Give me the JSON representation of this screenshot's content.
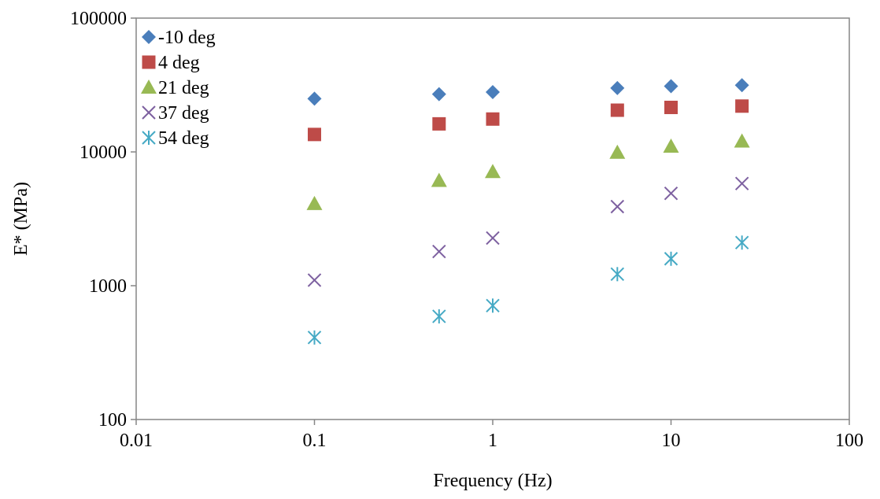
{
  "chart_data": {
    "type": "scatter",
    "title": "",
    "xlabel": "Frequency (Hz)",
    "ylabel": "E* (MPa)",
    "x_scale": "log",
    "y_scale": "log",
    "xlim": [
      0.01,
      100
    ],
    "ylim": [
      100,
      100000
    ],
    "x_ticks": [
      0.01,
      0.1,
      1,
      10,
      100
    ],
    "x_tick_labels": [
      "0.01",
      "0.1",
      "1",
      "10",
      "100"
    ],
    "y_ticks": [
      100,
      1000,
      10000,
      100000
    ],
    "y_tick_labels": [
      "100",
      "1000",
      "10000",
      "100000"
    ],
    "grid": false,
    "legend_position": "top-left",
    "series": [
      {
        "name": "-10 deg",
        "marker": "diamond",
        "color": "#4a7ebb",
        "x": [
          0.1,
          0.5,
          1,
          5,
          10,
          25
        ],
        "y": [
          25000,
          27000,
          28000,
          30000,
          31000,
          31500
        ]
      },
      {
        "name": "4 deg",
        "marker": "square",
        "color": "#be4b48",
        "x": [
          0.1,
          0.5,
          1,
          5,
          10,
          25
        ],
        "y": [
          13500,
          16200,
          17600,
          20500,
          21500,
          22000
        ]
      },
      {
        "name": "21 deg",
        "marker": "triangle",
        "color": "#98b954",
        "x": [
          0.1,
          0.5,
          1,
          5,
          10,
          25
        ],
        "y": [
          4100,
          6100,
          7100,
          9900,
          11000,
          12000
        ]
      },
      {
        "name": "37 deg",
        "marker": "x",
        "color": "#7d60a0",
        "x": [
          0.1,
          0.5,
          1,
          5,
          10,
          25
        ],
        "y": [
          1100,
          1800,
          2270,
          3900,
          4900,
          5800
        ]
      },
      {
        "name": "54 deg",
        "marker": "star",
        "color": "#46aac5",
        "x": [
          0.1,
          0.5,
          1,
          5,
          10,
          25
        ],
        "y": [
          410,
          590,
          710,
          1220,
          1590,
          2100
        ]
      }
    ]
  }
}
